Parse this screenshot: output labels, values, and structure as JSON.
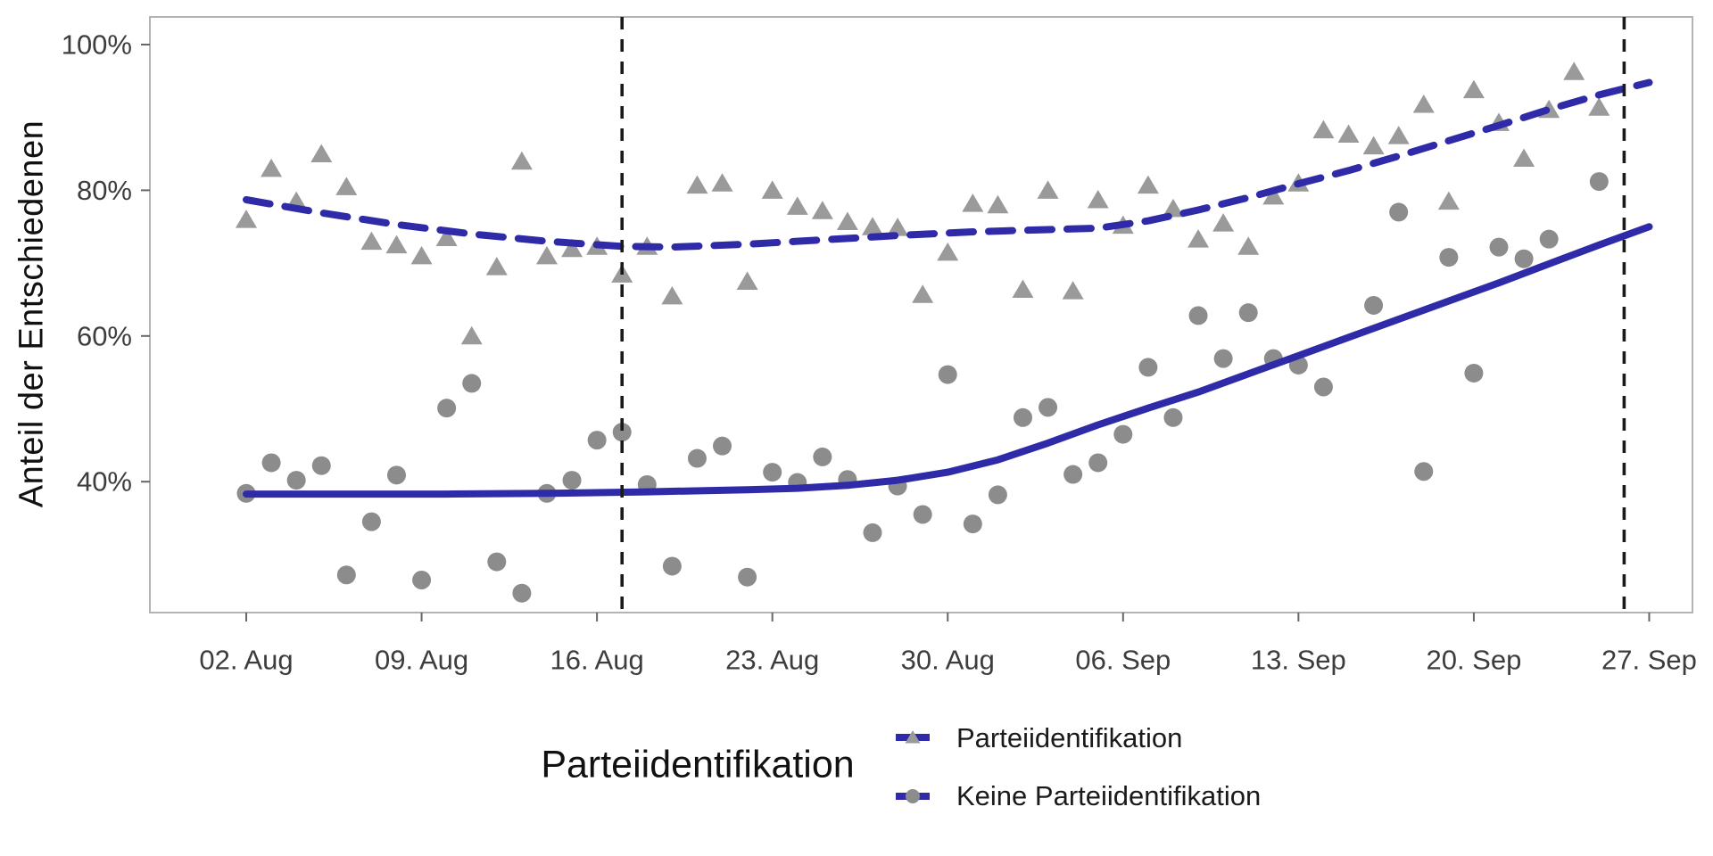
{
  "colors": {
    "accent_blue": "#2E2AA8",
    "triangle_gray": "#9A9A9A",
    "circle_gray": "#8C8C8C",
    "event_line_black": "#1A1A1A",
    "panel_border_gray": "#B3B3B3",
    "tick_gray": "#666666",
    "tick_label_gray": "#3D3D3D"
  },
  "y_axis": {
    "title": "Anteil der Entschiedenen",
    "tick_labels": [
      "100%",
      "80%",
      "60%",
      "40%"
    ],
    "tick_values": [
      100,
      80,
      60,
      40
    ]
  },
  "x_axis": {
    "tick_labels": [
      "02. Aug",
      "09. Aug",
      "16. Aug",
      "23. Aug",
      "30. Aug",
      "06. Sep",
      "13. Sep",
      "20. Sep",
      "27. Sep"
    ],
    "tick_days": [
      0,
      7,
      14,
      21,
      28,
      35,
      42,
      49,
      56
    ]
  },
  "legend": {
    "title": "Parteiidentifikation",
    "items": [
      {
        "label": "Parteiidentifikation",
        "marker": "triangle"
      },
      {
        "label": "Keine Parteiidentifikation",
        "marker": "circle"
      }
    ]
  },
  "chart_data": {
    "type": "scatter",
    "subtype": "scatter with loess smoothers and event lines",
    "x_unit": "date (2. Aug – 27. Sep)",
    "ylabel": "Anteil der Entschiedenen",
    "ylim": [
      22,
      104
    ],
    "grid": false,
    "legend_position": "bottom",
    "event_line_days": [
      15,
      55
    ],
    "event_line_dates": [
      "17. Aug",
      "26. Sep"
    ],
    "series": [
      {
        "name": "Parteiidentifikation",
        "marker": "triangle",
        "line_style": "dashed",
        "points": [
          [
            "02. Aug",
            76
          ],
          [
            "03. Aug",
            83
          ],
          [
            "04. Aug",
            78.5
          ],
          [
            "05. Aug",
            85
          ],
          [
            "06. Aug",
            80.5
          ],
          [
            "07. Aug",
            73
          ],
          [
            "08. Aug",
            72.5
          ],
          [
            "09. Aug",
            71
          ],
          [
            "10. Aug",
            73.5
          ],
          [
            "11. Aug",
            60
          ],
          [
            "12. Aug",
            69.5
          ],
          [
            "13. Aug",
            84
          ],
          [
            "14. Aug",
            71
          ],
          [
            "15. Aug",
            72
          ],
          [
            "16. Aug",
            72.3
          ],
          [
            "17. Aug",
            68.5
          ],
          [
            "18. Aug",
            72.3
          ],
          [
            "19. Aug",
            65.5
          ],
          [
            "20. Aug",
            80.7
          ],
          [
            "21. Aug",
            81
          ],
          [
            "22. Aug",
            67.5
          ],
          [
            "23. Aug",
            80
          ],
          [
            "24. Aug",
            77.8
          ],
          [
            "25. Aug",
            77.2
          ],
          [
            "26. Aug",
            75.7
          ],
          [
            "27. Aug",
            75
          ],
          [
            "28. Aug",
            74.9
          ],
          [
            "29. Aug",
            65.7
          ],
          [
            "30. Aug",
            71.5
          ],
          [
            "31. Aug",
            78.2
          ],
          [
            "01. Sep",
            78
          ],
          [
            "02. Sep",
            66.4
          ],
          [
            "03. Sep",
            80
          ],
          [
            "04. Sep",
            66.2
          ],
          [
            "05. Sep",
            78.7
          ],
          [
            "06. Sep",
            75.2
          ],
          [
            "07. Sep",
            80.7
          ],
          [
            "08. Sep",
            77.5
          ],
          [
            "09. Sep",
            73.3
          ],
          [
            "10. Sep",
            75.5
          ],
          [
            "11. Sep",
            72.3
          ],
          [
            "12. Sep",
            79.2
          ],
          [
            "13. Sep",
            81
          ],
          [
            "14. Sep",
            88.3
          ],
          [
            "15. Sep",
            87.7
          ],
          [
            "16. Sep",
            86.1
          ],
          [
            "17. Sep",
            87.5
          ],
          [
            "18. Sep",
            91.8
          ],
          [
            "19. Sep",
            78.5
          ],
          [
            "20. Sep",
            93.8
          ],
          [
            "21. Sep",
            89.3
          ],
          [
            "22. Sep",
            84.4
          ],
          [
            "23. Sep",
            91.1
          ],
          [
            "24. Sep",
            96.3
          ],
          [
            "25. Sep",
            91.4
          ]
        ],
        "trend": [
          [
            0,
            78.7
          ],
          [
            3,
            76.9
          ],
          [
            6,
            75.3
          ],
          [
            9,
            74.0
          ],
          [
            12,
            73.0
          ],
          [
            15,
            72.3
          ],
          [
            17,
            72.2
          ],
          [
            20,
            72.6
          ],
          [
            23,
            73.2
          ],
          [
            26,
            73.8
          ],
          [
            29,
            74.3
          ],
          [
            32,
            74.6
          ],
          [
            34,
            74.8
          ],
          [
            36,
            75.8
          ],
          [
            38,
            77.3
          ],
          [
            40,
            79.0
          ],
          [
            42,
            80.9
          ],
          [
            44,
            82.7
          ],
          [
            46,
            84.7
          ],
          [
            48,
            86.8
          ],
          [
            50,
            88.9
          ],
          [
            52,
            91.1
          ],
          [
            54,
            93.1
          ],
          [
            56,
            94.8
          ]
        ]
      },
      {
        "name": "Keine Parteiidentifikation",
        "marker": "circle",
        "line_style": "solid",
        "points": [
          [
            "02. Aug",
            38.4
          ],
          [
            "03. Aug",
            42.6
          ],
          [
            "04. Aug",
            40.2
          ],
          [
            "05. Aug",
            42.2
          ],
          [
            "06. Aug",
            27.2
          ],
          [
            "07. Aug",
            34.5
          ],
          [
            "08. Aug",
            40.9
          ],
          [
            "09. Aug",
            26.5
          ],
          [
            "10. Aug",
            50.1
          ],
          [
            "11. Aug",
            53.5
          ],
          [
            "12. Aug",
            29
          ],
          [
            "13. Aug",
            24.7
          ],
          [
            "14. Aug",
            38.4
          ],
          [
            "15. Aug",
            40.2
          ],
          [
            "16. Aug",
            45.7
          ],
          [
            "17. Aug",
            46.8
          ],
          [
            "18. Aug",
            39.6
          ],
          [
            "19. Aug",
            28.4
          ],
          [
            "20. Aug",
            43.2
          ],
          [
            "21. Aug",
            44.9
          ],
          [
            "22. Aug",
            26.9
          ],
          [
            "23. Aug",
            41.3
          ],
          [
            "24. Aug",
            39.9
          ],
          [
            "25. Aug",
            43.4
          ],
          [
            "26. Aug",
            40.3
          ],
          [
            "27. Aug",
            33
          ],
          [
            "28. Aug",
            39.4
          ],
          [
            "29. Aug",
            35.5
          ],
          [
            "30. Aug",
            54.7
          ],
          [
            "31. Aug",
            34.2
          ],
          [
            "01. Sep",
            38.2
          ],
          [
            "02. Sep",
            48.8
          ],
          [
            "03. Sep",
            50.2
          ],
          [
            "04. Sep",
            41
          ],
          [
            "05. Sep",
            42.6
          ],
          [
            "06. Sep",
            46.5
          ],
          [
            "07. Sep",
            55.7
          ],
          [
            "08. Sep",
            48.8
          ],
          [
            "09. Sep",
            62.8
          ],
          [
            "10. Sep",
            56.9
          ],
          [
            "11. Sep",
            63.2
          ],
          [
            "12. Sep",
            56.9
          ],
          [
            "13. Sep",
            56
          ],
          [
            "14. Sep",
            53
          ],
          [
            "16. Sep",
            64.2
          ],
          [
            "17. Sep",
            77
          ],
          [
            "18. Sep",
            41.4
          ],
          [
            "19. Sep",
            70.8
          ],
          [
            "20. Sep",
            54.9
          ],
          [
            "21. Sep",
            72.2
          ],
          [
            "22. Sep",
            70.6
          ],
          [
            "23. Sep",
            73.3
          ],
          [
            "25. Sep",
            81.2
          ]
        ],
        "trend": [
          [
            0,
            38.3
          ],
          [
            4,
            38.3
          ],
          [
            8,
            38.3
          ],
          [
            12,
            38.4
          ],
          [
            16,
            38.6
          ],
          [
            20,
            38.9
          ],
          [
            22,
            39.1
          ],
          [
            24,
            39.5
          ],
          [
            26,
            40.2
          ],
          [
            28,
            41.3
          ],
          [
            30,
            43.0
          ],
          [
            32,
            45.3
          ],
          [
            34,
            47.8
          ],
          [
            36,
            50.1
          ],
          [
            38,
            52.3
          ],
          [
            40,
            54.8
          ],
          [
            42,
            57.3
          ],
          [
            44,
            59.8
          ],
          [
            46,
            62.3
          ],
          [
            48,
            64.8
          ],
          [
            50,
            67.3
          ],
          [
            52,
            69.9
          ],
          [
            54,
            72.5
          ],
          [
            56,
            75.0
          ]
        ]
      }
    ]
  }
}
